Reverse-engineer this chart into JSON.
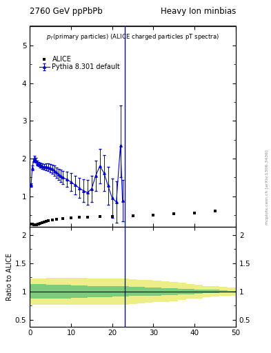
{
  "title_left": "2760 GeV ppPbPb",
  "title_right": "Heavy Ion minbias",
  "subtitle": "p_{T}(primary particles) (ALICE charged particles pT spectra)",
  "ylabel_ratio": "Ratio to ALICE",
  "vline_x": 23.0,
  "xlim": [
    0,
    50
  ],
  "ylim_main": [
    0.2,
    5.5
  ],
  "ylim_ratio": [
    0.38,
    2.15
  ],
  "watermark": "mcplots.cern.ch [arXiv:1306.3436]",
  "legend_alice": "ALICE",
  "legend_pythia": "Pythia 8.301 default",
  "alice_x": [
    0.5,
    0.7,
    0.9,
    1.1,
    1.3,
    1.5,
    1.7,
    1.9,
    2.1,
    2.5,
    3.0,
    3.5,
    4.0,
    4.5,
    5.5,
    6.5,
    8.0,
    10.0,
    12.0,
    14.0,
    17.0,
    20.0,
    25.0,
    30.0,
    35.0,
    40.0,
    45.0
  ],
  "alice_y": [
    0.26,
    0.26,
    0.25,
    0.25,
    0.25,
    0.25,
    0.25,
    0.26,
    0.27,
    0.28,
    0.3,
    0.32,
    0.34,
    0.36,
    0.38,
    0.39,
    0.41,
    0.43,
    0.44,
    0.45,
    0.46,
    0.47,
    0.49,
    0.51,
    0.53,
    0.56,
    0.62
  ],
  "pythia_x": [
    0.3,
    0.6,
    0.9,
    1.2,
    1.5,
    1.8,
    2.1,
    2.4,
    2.7,
    3.0,
    3.5,
    4.0,
    4.5,
    5.0,
    5.5,
    6.0,
    6.5,
    7.0,
    7.5,
    8.0,
    9.0,
    10.0,
    11.0,
    12.0,
    13.0,
    14.0,
    15.0,
    16.0,
    17.0,
    18.0,
    19.0,
    20.0,
    21.0,
    22.0,
    22.5
  ],
  "pythia_y": [
    1.3,
    1.75,
    1.95,
    2.02,
    1.95,
    1.88,
    1.85,
    1.83,
    1.82,
    1.8,
    1.78,
    1.78,
    1.77,
    1.75,
    1.72,
    1.68,
    1.63,
    1.58,
    1.54,
    1.5,
    1.45,
    1.38,
    1.3,
    1.22,
    1.15,
    1.1,
    1.2,
    1.55,
    1.8,
    1.62,
    1.28,
    0.95,
    0.85,
    2.35,
    0.88
  ],
  "pythia_yerr_lo": [
    0.05,
    0.06,
    0.05,
    0.05,
    0.06,
    0.06,
    0.06,
    0.06,
    0.06,
    0.07,
    0.08,
    0.09,
    0.1,
    0.11,
    0.12,
    0.13,
    0.14,
    0.15,
    0.17,
    0.18,
    0.2,
    0.23,
    0.25,
    0.27,
    0.3,
    0.33,
    0.35,
    0.4,
    0.45,
    0.48,
    0.5,
    0.52,
    0.55,
    0.85,
    0.55
  ],
  "pythia_yerr_hi": [
    0.05,
    0.06,
    0.05,
    0.05,
    0.06,
    0.06,
    0.06,
    0.06,
    0.06,
    0.07,
    0.08,
    0.09,
    0.1,
    0.11,
    0.12,
    0.13,
    0.14,
    0.15,
    0.17,
    0.18,
    0.2,
    0.23,
    0.25,
    0.27,
    0.3,
    0.33,
    0.35,
    0.4,
    0.45,
    0.48,
    0.5,
    0.52,
    0.55,
    1.05,
    0.55
  ],
  "ratio_x": [
    0,
    2,
    4,
    6,
    8,
    10,
    12,
    14,
    16,
    18,
    20,
    22,
    24,
    26,
    28,
    30,
    32,
    34,
    36,
    38,
    40,
    42,
    44,
    46,
    48,
    50
  ],
  "ratio_green_lo": [
    0.87,
    0.87,
    0.88,
    0.88,
    0.88,
    0.89,
    0.89,
    0.9,
    0.9,
    0.9,
    0.91,
    0.91,
    0.92,
    0.92,
    0.93,
    0.93,
    0.94,
    0.94,
    0.95,
    0.95,
    0.96,
    0.97,
    0.97,
    0.98,
    0.99,
    1.0
  ],
  "ratio_green_hi": [
    1.13,
    1.13,
    1.12,
    1.12,
    1.12,
    1.11,
    1.11,
    1.1,
    1.1,
    1.1,
    1.09,
    1.09,
    1.08,
    1.08,
    1.07,
    1.07,
    1.06,
    1.06,
    1.05,
    1.05,
    1.04,
    1.03,
    1.03,
    1.02,
    1.01,
    1.0
  ],
  "ratio_yellow_lo": [
    0.77,
    0.77,
    0.76,
    0.76,
    0.76,
    0.76,
    0.76,
    0.77,
    0.77,
    0.77,
    0.77,
    0.77,
    0.78,
    0.79,
    0.8,
    0.81,
    0.82,
    0.83,
    0.85,
    0.87,
    0.88,
    0.9,
    0.91,
    0.92,
    0.93,
    0.93
  ],
  "ratio_yellow_hi": [
    1.23,
    1.23,
    1.24,
    1.24,
    1.24,
    1.24,
    1.24,
    1.23,
    1.23,
    1.23,
    1.23,
    1.23,
    1.22,
    1.21,
    1.2,
    1.19,
    1.18,
    1.17,
    1.15,
    1.13,
    1.12,
    1.1,
    1.09,
    1.08,
    1.07,
    1.07
  ],
  "bg_color": "#ffffff",
  "alice_color": "#000000",
  "pythia_color": "#0000cc",
  "green_color": "#7dcc7d",
  "yellow_color": "#eeee88",
  "vline_color": "#0000cc",
  "ratio_line_color": "#000000"
}
